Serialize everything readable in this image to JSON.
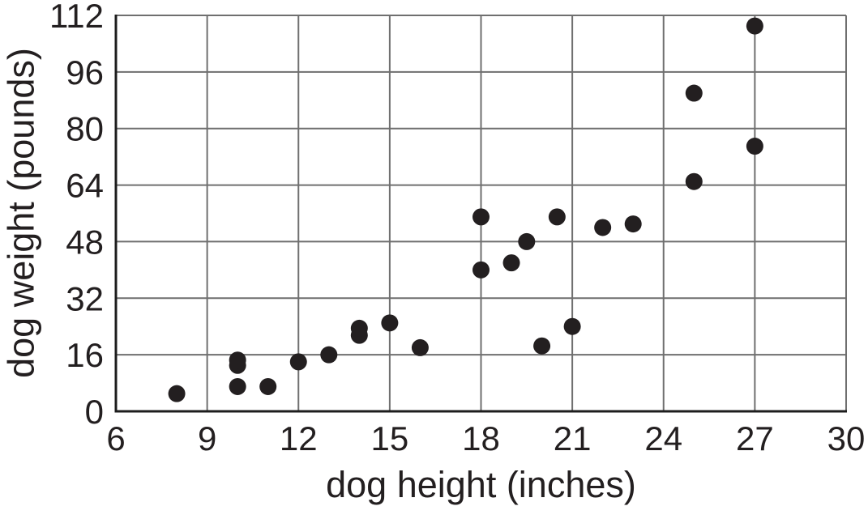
{
  "chart_data": {
    "type": "scatter",
    "title": "",
    "xlabel": "dog height (inches)",
    "ylabel": "dog weight (pounds)",
    "xlim": [
      6,
      30
    ],
    "ylim": [
      0,
      112
    ],
    "x_ticks": [
      6,
      9,
      12,
      15,
      18,
      21,
      24,
      27,
      30
    ],
    "y_ticks": [
      0,
      16,
      32,
      48,
      64,
      80,
      96,
      112
    ],
    "grid": true,
    "legend": "none",
    "marker": "filled-circle",
    "points": [
      {
        "height": 8,
        "weight": 5
      },
      {
        "height": 10,
        "weight": 7
      },
      {
        "height": 10,
        "weight": 13
      },
      {
        "height": 10,
        "weight": 14.5
      },
      {
        "height": 11,
        "weight": 7
      },
      {
        "height": 12,
        "weight": 14
      },
      {
        "height": 13,
        "weight": 16
      },
      {
        "height": 14,
        "weight": 21.5
      },
      {
        "height": 14,
        "weight": 23.5
      },
      {
        "height": 15,
        "weight": 25
      },
      {
        "height": 16,
        "weight": 18
      },
      {
        "height": 18,
        "weight": 40
      },
      {
        "height": 18,
        "weight": 55
      },
      {
        "height": 19,
        "weight": 42
      },
      {
        "height": 19.5,
        "weight": 48
      },
      {
        "height": 20,
        "weight": 18.5
      },
      {
        "height": 20.5,
        "weight": 55
      },
      {
        "height": 21,
        "weight": 24
      },
      {
        "height": 22,
        "weight": 52
      },
      {
        "height": 23,
        "weight": 53
      },
      {
        "height": 25,
        "weight": 65
      },
      {
        "height": 25,
        "weight": 90
      },
      {
        "height": 27,
        "weight": 75
      },
      {
        "height": 27,
        "weight": 109
      }
    ],
    "colors": {
      "point": "#231f20",
      "grid": "#6f6f6f",
      "axis": "#1d1d1d",
      "text": "#231f20",
      "background": "#ffffff"
    }
  }
}
